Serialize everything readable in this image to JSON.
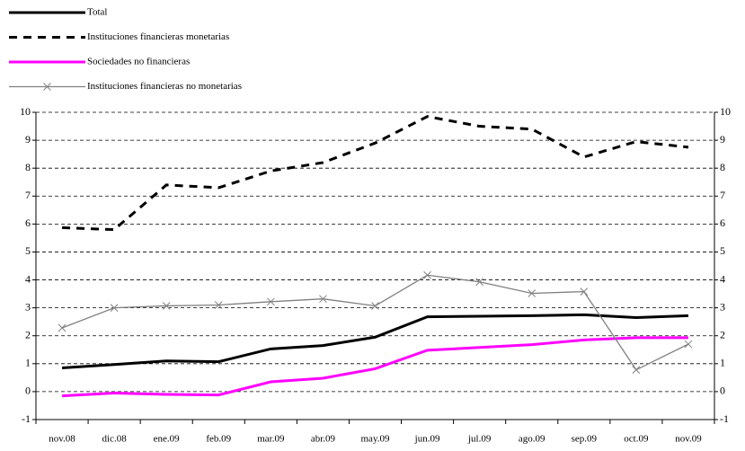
{
  "chart_data": {
    "type": "line",
    "categories": [
      "nov.08",
      "dic.08",
      "ene.09",
      "feb.09",
      "mar.09",
      "abr.09",
      "may.09",
      "jun.09",
      "jul.09",
      "ago.09",
      "sep.09",
      "oct.09",
      "nov.09"
    ],
    "series": [
      {
        "name": "Total",
        "color": "#000000",
        "line_width": 3,
        "dashed": false,
        "values": [
          0.85,
          0.97,
          1.1,
          1.07,
          1.53,
          1.65,
          1.95,
          2.68,
          2.7,
          2.72,
          2.75,
          2.65,
          2.72
        ]
      },
      {
        "name": "Instituciones financieras monetarias",
        "color": "#000000",
        "line_width": 3,
        "dashed": true,
        "values": [
          5.87,
          5.8,
          7.4,
          7.3,
          7.9,
          8.2,
          8.9,
          9.85,
          9.5,
          9.4,
          8.4,
          8.95,
          8.75
        ]
      },
      {
        "name": "Sociedades no financieras",
        "color": "#ff00ff",
        "line_width": 3,
        "dashed": false,
        "values": [
          -0.15,
          -0.05,
          -0.1,
          -0.12,
          0.35,
          0.48,
          0.82,
          1.48,
          1.58,
          1.68,
          1.85,
          1.93,
          1.93
        ]
      },
      {
        "name": "Instituciones financieras no monetarias",
        "color": "#808080",
        "line_width": 1.3,
        "dashed": false,
        "marker": "x",
        "values": [
          2.28,
          3.0,
          3.07,
          3.1,
          3.22,
          3.32,
          3.07,
          4.17,
          3.93,
          3.52,
          3.58,
          0.78,
          1.7
        ]
      }
    ],
    "ylim": [
      -1,
      10
    ],
    "yticks": [
      -1,
      0,
      1,
      2,
      3,
      4,
      5,
      6,
      7,
      8,
      9,
      10
    ],
    "y2lim": [
      -1,
      10
    ],
    "y2ticks": [
      -1,
      0,
      1,
      2,
      3,
      4,
      5,
      6,
      7,
      8,
      9,
      10
    ],
    "grid": true,
    "legend": "top-left"
  }
}
